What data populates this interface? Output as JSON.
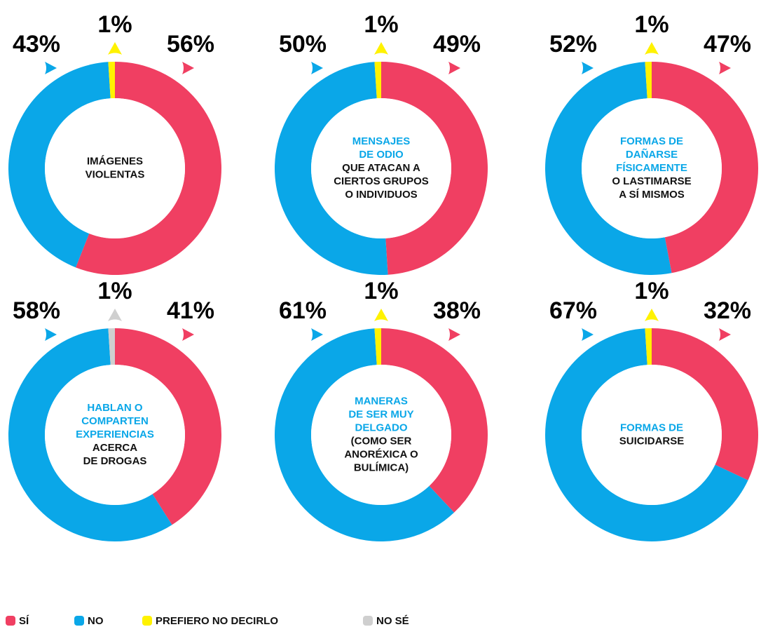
{
  "chart_data": [
    {
      "type": "pie",
      "title_highlight": [],
      "title": [
        "IMÁGENES",
        "VIOLENTAS"
      ],
      "values": [
        56,
        43,
        1,
        null
      ],
      "value_labels": [
        "56%",
        "43%",
        "1%",
        null
      ]
    },
    {
      "type": "pie",
      "title_highlight": [
        "MENSAJES",
        "DE ODIO"
      ],
      "title": [
        "QUE ATACAN A",
        "CIERTOS GRUPOS",
        "O INDIVIDUOS"
      ],
      "values": [
        49,
        50,
        1,
        null
      ],
      "value_labels": [
        "49%",
        "50%",
        "1%",
        null
      ]
    },
    {
      "type": "pie",
      "title_highlight": [
        "FORMAS DE",
        "DAÑARSE",
        "FÍSICAMENTE"
      ],
      "title": [
        "O LASTIMARSE",
        "A SÍ MISMOS"
      ],
      "values": [
        47,
        52,
        1,
        null
      ],
      "value_labels": [
        "47%",
        "52%",
        "1%",
        null
      ]
    },
    {
      "type": "pie",
      "title_highlight": [
        "HABLAN O",
        "COMPARTEN",
        "EXPERIENCIAS"
      ],
      "title": [
        "ACERCA",
        "DE DROGAS"
      ],
      "values": [
        41,
        58,
        null,
        1
      ],
      "value_labels": [
        "41%",
        "58%",
        null,
        "1%"
      ]
    },
    {
      "type": "pie",
      "title_highlight": [
        "MANERAS",
        "DE SER MUY",
        "DELGADO"
      ],
      "title": [
        "(COMO SER",
        "ANORÉXICA O",
        "BULÍMICA)"
      ],
      "values": [
        38,
        61,
        1,
        null
      ],
      "value_labels": [
        "38%",
        "61%",
        "1%",
        null
      ]
    },
    {
      "type": "pie",
      "title_highlight": [
        "FORMAS DE"
      ],
      "title": [
        "SUICIDARSE"
      ],
      "values": [
        32,
        67,
        1,
        null
      ],
      "value_labels": [
        "32%",
        "67%",
        "1%",
        null
      ]
    }
  ],
  "legend": {
    "categories": [
      "SÍ",
      "NO",
      "PREFIERO NO DECIRLO",
      "NO SÉ"
    ],
    "colors": [
      "#f03f62",
      "#0aa7e8",
      "#fff200",
      "#cfcfcf"
    ],
    "highlight_color": "#0aa7e8"
  }
}
